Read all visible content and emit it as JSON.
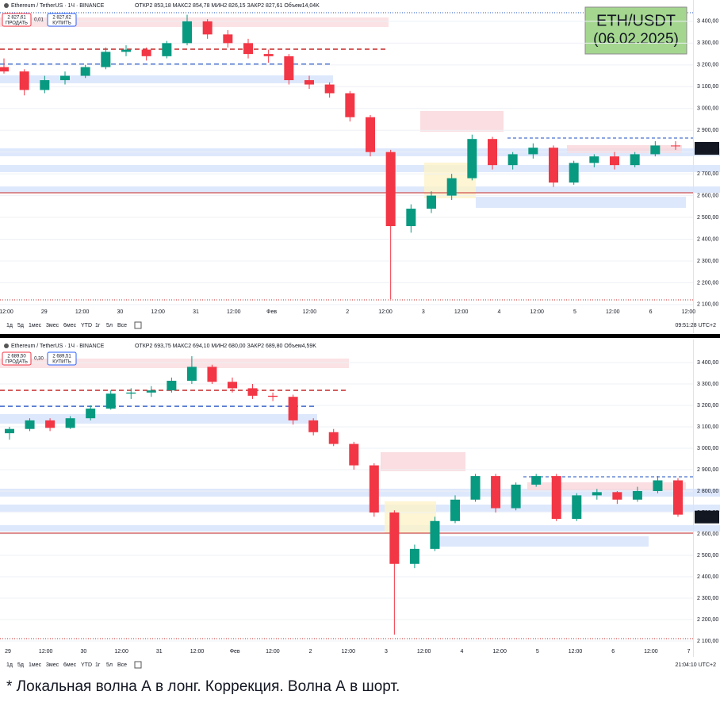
{
  "badge": {
    "line1": "ETH/USDT",
    "line2": "(06.02.2025)"
  },
  "caption": "* Локальная волна А в лонг. Коррекция. Волна А в шорт.",
  "panels": [
    {
      "symbol": "Ethereum / TetherUS · 1Ч · BINANCE",
      "ohlc_text": "ОТКР2 853,18 МАКС2 854,78 МИН2 826,15 ЗАКР2 827,61 Объем14,04K",
      "sell_price": "2 827,61",
      "sell_label": "ПРОДАТЬ",
      "spread": "0,01",
      "buy_price": "2 827,62",
      "buy_label": "КУПИТЬ",
      "last_price": "2 827,61",
      "countdown": "08:33",
      "toolbar": [
        "1д",
        "5д",
        "1мес",
        "3мес",
        "6мес",
        "YTD",
        "1г",
        "5л",
        "Все"
      ],
      "clock": "09:51:28 UTC+2"
    },
    {
      "symbol": "Ethereum / TetherUS · 1Ч · BINANCE",
      "ohlc_text": "ОТКР2 693,75 МАКС2 694,10 МИН2 680,00 ЗАКР2 689,80 Объем4,59K",
      "sell_price": "2 689,50",
      "sell_label": "ПРОДАТЬ",
      "spread": "0,30",
      "buy_price": "2 689,51",
      "buy_label": "КУПИТЬ",
      "last_price": "2 689,80",
      "countdown": "55:49",
      "toolbar": [
        "1д",
        "5д",
        "1мес",
        "3мес",
        "6мес",
        "YTD",
        "1г",
        "5л",
        "Все"
      ],
      "clock": "21:04:10 UTC+2"
    }
  ],
  "chart_data": [
    {
      "type": "candlestick",
      "up_color": "#089981",
      "down_color": "#f23645",
      "grid": true,
      "ylim": [
        2085,
        3447
      ],
      "yticks": [
        {
          "value": 2100,
          "label": "2 100,00"
        },
        {
          "value": 2200,
          "label": "2 200,00"
        },
        {
          "value": 2300,
          "label": "2 300,00"
        },
        {
          "value": 2400,
          "label": "2 400,00"
        },
        {
          "value": 2500,
          "label": "2 500,00"
        },
        {
          "value": 2600,
          "label": "2 600,00"
        },
        {
          "value": 2700,
          "label": "2 700,00"
        },
        {
          "value": 2800,
          "label": "2 800,00"
        },
        {
          "value": 2900,
          "label": "2 900,00"
        },
        {
          "value": 3000,
          "label": "3 000,00"
        },
        {
          "value": 3100,
          "label": "3 100,00"
        },
        {
          "value": 3200,
          "label": "3 200,00"
        },
        {
          "value": 3300,
          "label": "3 300,00"
        },
        {
          "value": 3400,
          "label": "3 400,00"
        }
      ],
      "x_labels": [
        "12:00",
        "29",
        "12:00",
        "30",
        "12:00",
        "31",
        "12:00",
        "Фев",
        "12:00",
        "2",
        "12:00",
        "3",
        "12:00",
        "4",
        "12:00",
        "5",
        "12:00",
        "6",
        "12:00"
      ],
      "candles": {
        "open": [
          3190,
          3170,
          3085,
          3130,
          3150,
          3190,
          3260,
          3270,
          3240,
          3300,
          3400,
          3340,
          3300,
          3250,
          3240,
          3130,
          3110,
          3070,
          2960,
          2800,
          2460,
          2540,
          2600,
          2680,
          2860,
          2740,
          2790,
          2820,
          2660,
          2750,
          2780,
          2740,
          2790,
          2830
        ],
        "high": [
          3230,
          3180,
          3150,
          3170,
          3200,
          3280,
          3290,
          3280,
          3310,
          3430,
          3410,
          3360,
          3320,
          3270,
          3250,
          3150,
          3120,
          3080,
          2970,
          2810,
          2560,
          2620,
          2700,
          2880,
          2870,
          2800,
          2840,
          2830,
          2760,
          2790,
          2800,
          2800,
          2850,
          2850
        ],
        "low": [
          3160,
          3060,
          3070,
          3110,
          3140,
          3180,
          3240,
          3220,
          3230,
          3290,
          3320,
          3280,
          3230,
          3210,
          3110,
          3090,
          3050,
          2940,
          2780,
          2125,
          2430,
          2520,
          2580,
          2670,
          2720,
          2720,
          2770,
          2640,
          2650,
          2730,
          2720,
          2730,
          2780,
          2810
        ],
        "close": [
          3170,
          3085,
          3130,
          3150,
          3190,
          3260,
          3270,
          3240,
          3300,
          3400,
          3340,
          3300,
          3250,
          3240,
          3130,
          3110,
          3070,
          2960,
          2800,
          2460,
          2540,
          2600,
          2680,
          2860,
          2740,
          2790,
          2820,
          2660,
          2750,
          2780,
          2740,
          2790,
          2830,
          2828
        ]
      }
    },
    {
      "type": "candlestick",
      "up_color": "#089981",
      "down_color": "#f23645",
      "grid": true,
      "ylim": [
        2085,
        3463
      ],
      "yticks": [
        {
          "value": 2100,
          "label": "2 100,00"
        },
        {
          "value": 2200,
          "label": "2 200,00"
        },
        {
          "value": 2300,
          "label": "2 300,00"
        },
        {
          "value": 2400,
          "label": "2 400,00"
        },
        {
          "value": 2500,
          "label": "2 500,00"
        },
        {
          "value": 2600,
          "label": "2 600,00"
        },
        {
          "value": 2700,
          "label": "2 700,00"
        },
        {
          "value": 2800,
          "label": "2 800,00"
        },
        {
          "value": 2900,
          "label": "2 900,00"
        },
        {
          "value": 3000,
          "label": "3 000,00"
        },
        {
          "value": 3100,
          "label": "3 100,00"
        },
        {
          "value": 3200,
          "label": "3 200,00"
        },
        {
          "value": 3300,
          "label": "3 300,00"
        },
        {
          "value": 3400,
          "label": "3 400,00"
        }
      ],
      "x_labels": [
        "29",
        "12:00",
        "30",
        "12:00",
        "31",
        "12:00",
        "Фев",
        "12:00",
        "2",
        "12:00",
        "3",
        "12:00",
        "4",
        "12:00",
        "5",
        "12:00",
        "6",
        "12:00",
        "7"
      ],
      "candles": {
        "open": [
          3070,
          3090,
          3130,
          3095,
          3140,
          3185,
          3255,
          3260,
          3270,
          3315,
          3380,
          3310,
          3280,
          3245,
          3240,
          3130,
          3075,
          3020,
          2920,
          2700,
          2460,
          2530,
          2660,
          2760,
          2870,
          2720,
          2830,
          2870,
          2670,
          2780,
          2795,
          2760,
          2800,
          2850
        ],
        "high": [
          3100,
          3140,
          3140,
          3150,
          3200,
          3270,
          3280,
          3290,
          3330,
          3430,
          3390,
          3330,
          3300,
          3260,
          3250,
          3140,
          3090,
          3030,
          2930,
          2710,
          2550,
          2680,
          2780,
          2880,
          2880,
          2840,
          2880,
          2880,
          2790,
          2810,
          2800,
          2820,
          2870,
          2860
        ],
        "low": [
          3040,
          3080,
          3080,
          3090,
          3130,
          3180,
          3230,
          3240,
          3260,
          3300,
          3300,
          3260,
          3230,
          3220,
          3110,
          3060,
          3010,
          2900,
          2680,
          2130,
          2440,
          2520,
          2650,
          2750,
          2700,
          2710,
          2820,
          2660,
          2660,
          2760,
          2740,
          2750,
          2790,
          2680
        ],
        "close": [
          3090,
          3130,
          3095,
          3140,
          3185,
          3255,
          3260,
          3270,
          3315,
          3380,
          3310,
          3280,
          3245,
          3240,
          3130,
          3075,
          3020,
          2920,
          2700,
          2460,
          2530,
          2660,
          2760,
          2870,
          2720,
          2830,
          2870,
          2670,
          2780,
          2795,
          2760,
          2800,
          2850,
          2690
        ]
      }
    }
  ]
}
